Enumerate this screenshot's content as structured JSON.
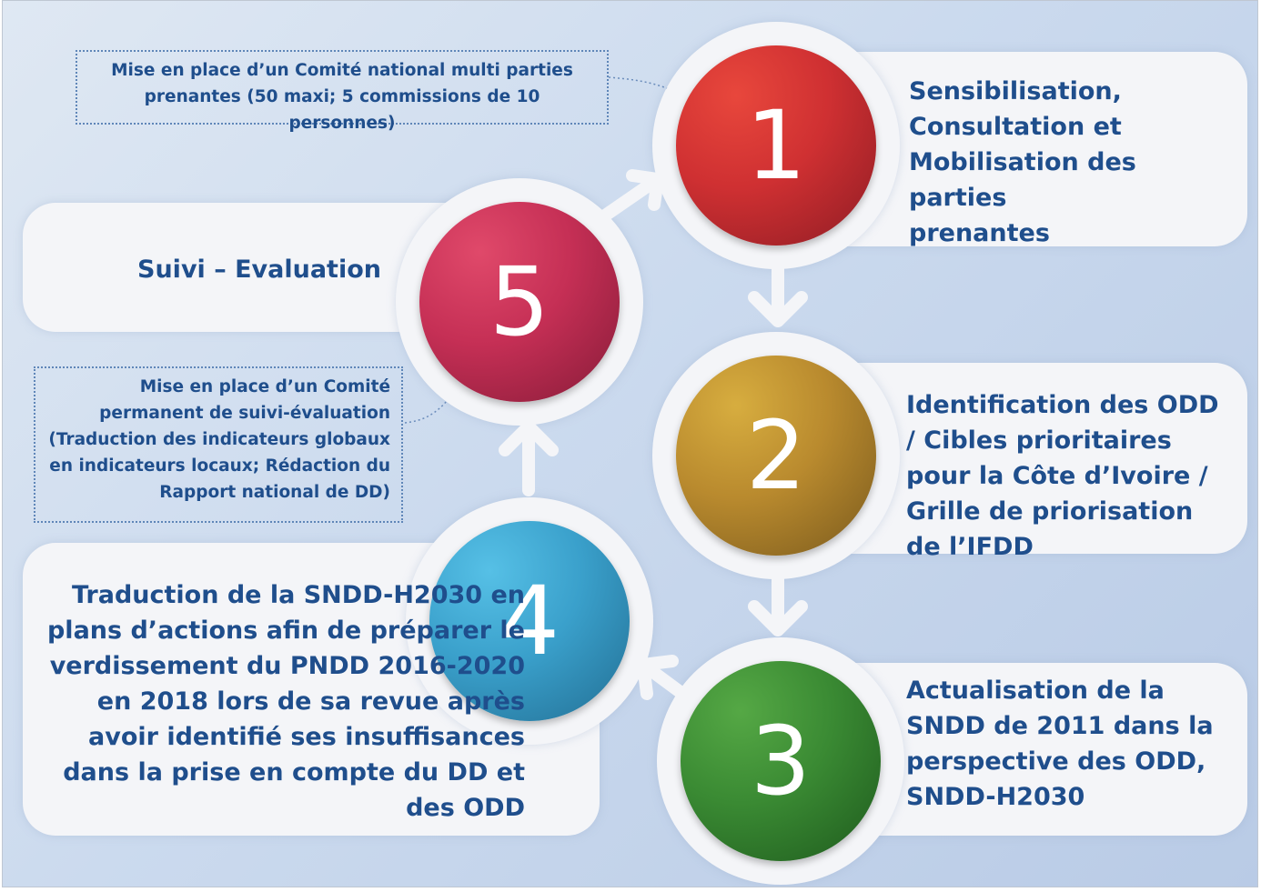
{
  "steps": [
    {
      "number": "1",
      "text": "Sensibilisation, Consultation et Mobilisation des parties prenantes",
      "color": "#cf3032"
    },
    {
      "number": "2",
      "text": "Identification des ODD / Cibles prioritaires pour la Côte d’Ivoire / Grille de priorisation de l’IFDD",
      "color": "#b98a2e"
    },
    {
      "number": "3",
      "text": "Actualisation de la SNDD de 2011 dans la perspective des ODD, SNDD-H2030",
      "color": "#3a8a33"
    },
    {
      "number": "4",
      "text": "Traduction de la SNDD-H2030 en plans d’actions afin de préparer le verdissement du PNDD 2016-2020 en 2018 lors de sa revue après avoir identifié ses insuffisances dans la prise en compte du DD et des ODD",
      "color": "#3aa0cb"
    },
    {
      "number": "5",
      "text": "Suivi – Evaluation",
      "color": "#c52f55"
    }
  ],
  "notes": {
    "note1": "Mise en place d’un Comité national multi parties prenantes (50 maxi; 5 commissions de 10 personnes)",
    "note5": "Mise en place d’un Comité permanent de suivi-évaluation (Traduction des indicateurs globaux en indicateurs locaux; Rédaction du Rapport national de DD)"
  }
}
